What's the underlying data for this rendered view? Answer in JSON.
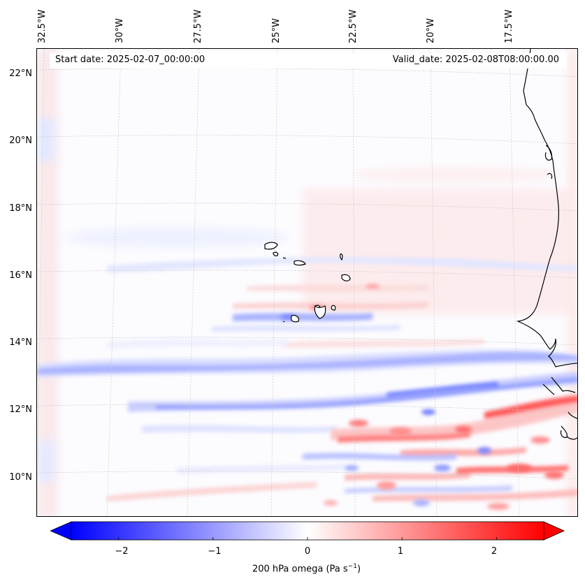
{
  "header": {
    "start_date": "Start date: 2025-02-07_00:00:00",
    "valid_date": "Valid_date: 2025-02-08T08:00:00.00"
  },
  "longitude_labels": [
    "32.5°W",
    "30°W",
    "27.5°W",
    "25°W",
    "22.5°W",
    "20°W",
    "17.5°W"
  ],
  "latitude_labels": [
    "22°N",
    "20°N",
    "18°N",
    "16°N",
    "14°N",
    "12°N",
    "10°N"
  ],
  "colorbar": {
    "ticks": [
      "−2",
      "−1",
      "0",
      "1",
      "2"
    ],
    "tick_values": [
      -2,
      -1,
      0,
      1,
      2
    ],
    "range": [
      -2.5,
      2.5
    ],
    "label_main": "200 hPa omega (Pa s",
    "label_sup": "−1",
    "label_end": ")"
  },
  "colors": {
    "negative": "#0000ff",
    "positive": "#ff0000",
    "neutral": "#ffffff",
    "coastline": "#000000"
  }
}
